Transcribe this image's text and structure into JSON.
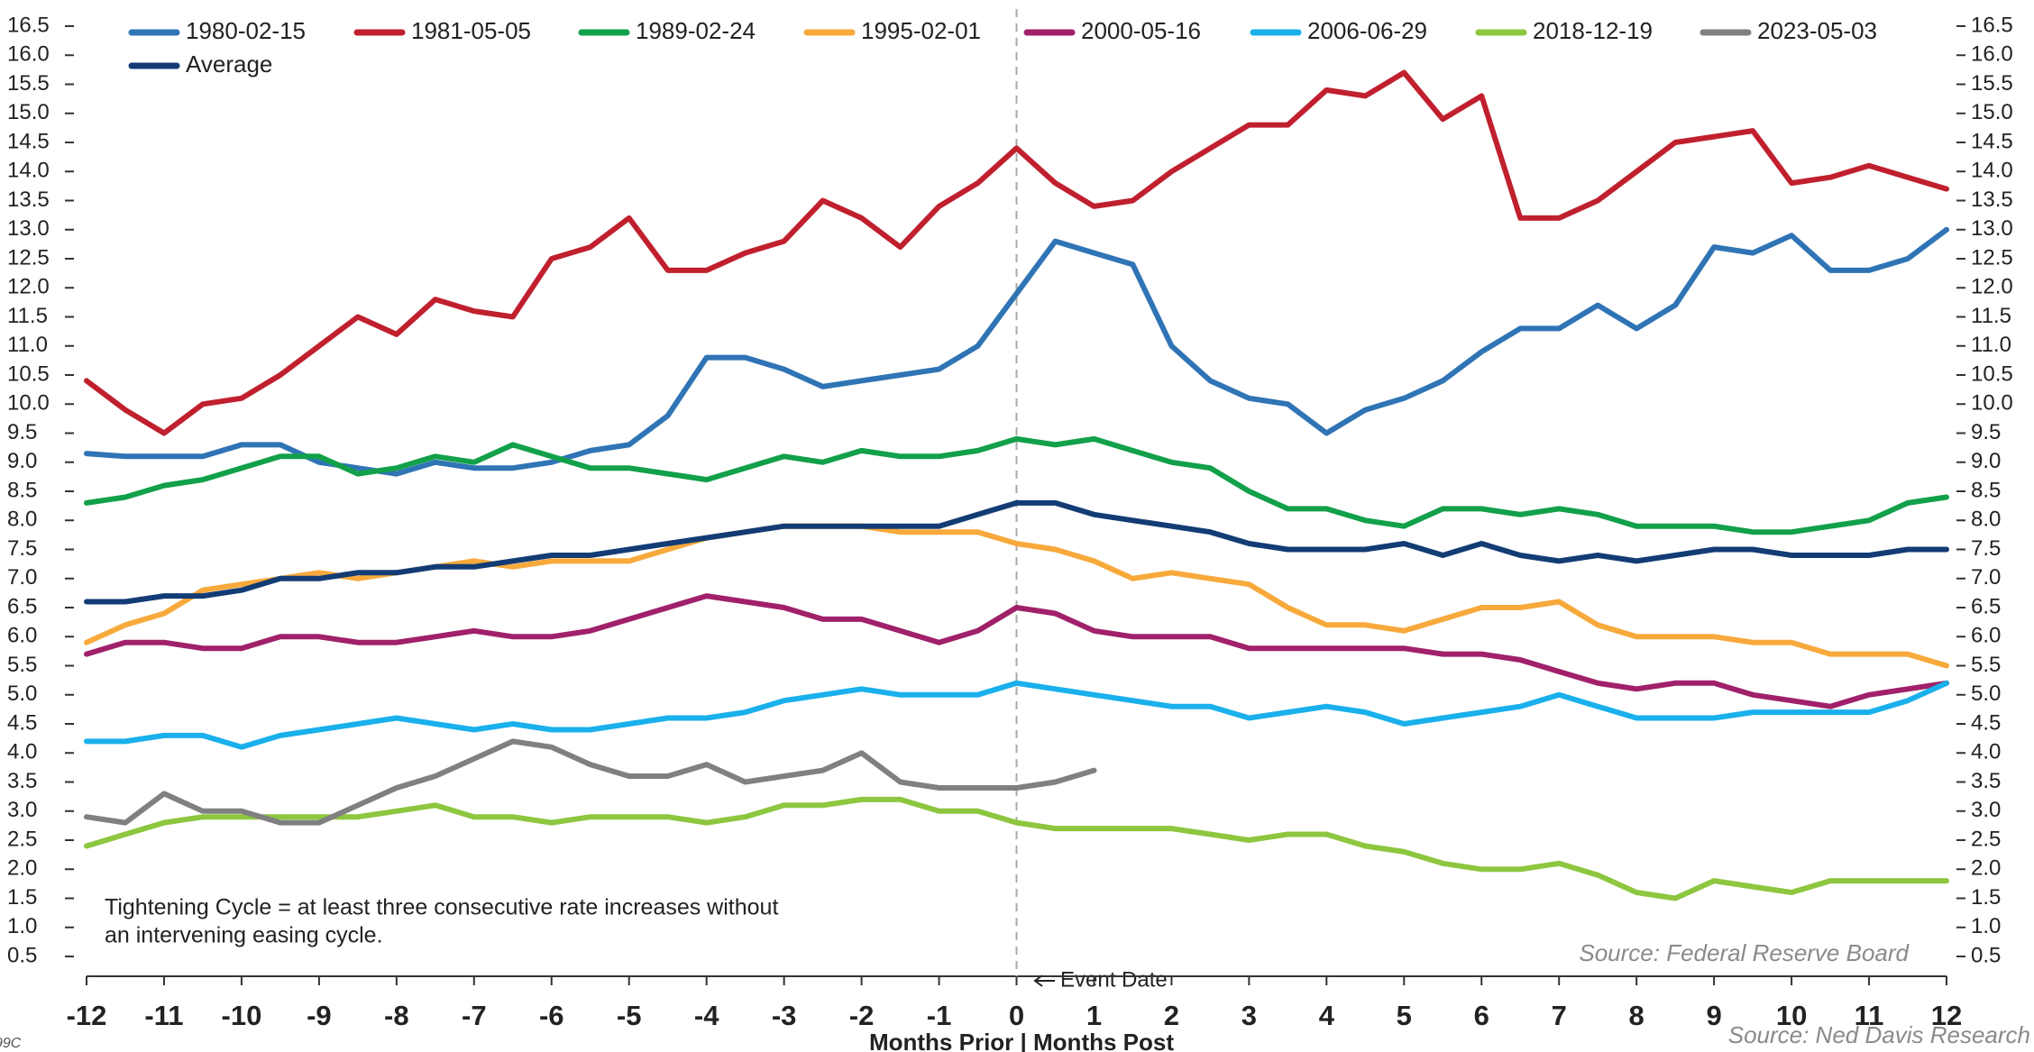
{
  "chart_data": {
    "type": "line",
    "x": [
      -12,
      -11.5,
      -11,
      -10.5,
      -10,
      -9.5,
      -9,
      -8.5,
      -8,
      -7.5,
      -7,
      -6.5,
      -6,
      -5.5,
      -5,
      -4.5,
      -4,
      -3.5,
      -3,
      -2.5,
      -2,
      -1.5,
      -1,
      -0.5,
      0,
      0.5,
      1,
      1.5,
      2,
      2.5,
      3,
      3.5,
      4,
      4.5,
      5,
      5.5,
      6,
      6.5,
      7,
      7.5,
      8,
      8.5,
      9,
      9.5,
      10,
      10.5,
      11,
      11.5,
      12
    ],
    "series": [
      {
        "name": "1980-02-15",
        "color": "#2f74b5",
        "values": [
          9.15,
          9.1,
          9.1,
          9.1,
          9.3,
          9.3,
          9.0,
          8.9,
          8.8,
          9.0,
          8.9,
          8.9,
          9.0,
          9.2,
          9.3,
          9.8,
          10.8,
          10.8,
          10.6,
          10.3,
          10.4,
          10.5,
          10.6,
          11.0,
          11.9,
          12.8,
          12.6,
          12.4,
          11.0,
          10.4,
          10.1,
          10.0,
          9.5,
          9.9,
          10.1,
          10.4,
          10.9,
          11.3,
          11.3,
          11.7,
          11.3,
          11.7,
          12.7,
          12.6,
          12.9,
          12.3,
          12.3,
          12.5,
          13.0
        ]
      },
      {
        "name": "1981-05-05",
        "color": "#c0202e",
        "values": [
          10.4,
          9.9,
          9.5,
          10.0,
          10.1,
          10.5,
          11.0,
          11.5,
          11.2,
          11.8,
          11.6,
          11.5,
          12.5,
          12.7,
          13.2,
          12.3,
          12.3,
          12.6,
          12.8,
          13.5,
          13.2,
          12.7,
          13.4,
          13.8,
          14.4,
          13.8,
          13.4,
          13.5,
          14.0,
          14.4,
          14.8,
          14.8,
          15.4,
          15.3,
          15.7,
          14.9,
          15.3,
          13.2,
          13.2,
          13.5,
          14.0,
          14.5,
          14.6,
          14.7,
          13.8,
          13.9,
          14.1,
          13.9,
          13.7
        ]
      },
      {
        "name": "1989-02-24",
        "color": "#12a04a",
        "values": [
          8.3,
          8.4,
          8.6,
          8.7,
          8.9,
          9.1,
          9.1,
          8.8,
          8.9,
          9.1,
          9.0,
          9.3,
          9.1,
          8.9,
          8.9,
          8.8,
          8.7,
          8.9,
          9.1,
          9.0,
          9.2,
          9.1,
          9.1,
          9.2,
          9.4,
          9.3,
          9.4,
          9.2,
          9.0,
          8.9,
          8.5,
          8.2,
          8.2,
          8.0,
          7.9,
          8.2,
          8.2,
          8.1,
          8.2,
          8.1,
          7.9,
          7.9,
          7.9,
          7.8,
          7.8,
          7.9,
          8.0,
          8.3,
          8.4
        ]
      },
      {
        "name": "1995-02-01",
        "color": "#f7a93b",
        "values": [
          5.9,
          6.2,
          6.4,
          6.8,
          6.9,
          7.0,
          7.1,
          7.0,
          7.1,
          7.2,
          7.3,
          7.2,
          7.3,
          7.3,
          7.3,
          7.5,
          7.7,
          7.8,
          7.9,
          7.9,
          7.9,
          7.8,
          7.8,
          7.8,
          7.6,
          7.5,
          7.3,
          7.0,
          7.1,
          7.0,
          6.9,
          6.5,
          6.2,
          6.2,
          6.1,
          6.3,
          6.5,
          6.5,
          6.6,
          6.2,
          6.0,
          6.0,
          6.0,
          5.9,
          5.9,
          5.7,
          5.7,
          5.7,
          5.5
        ]
      },
      {
        "name": "2000-05-16",
        "color": "#a0216a",
        "values": [
          5.7,
          5.9,
          5.9,
          5.8,
          5.8,
          6.0,
          6.0,
          5.9,
          5.9,
          6.0,
          6.1,
          6.0,
          6.0,
          6.1,
          6.3,
          6.5,
          6.7,
          6.6,
          6.5,
          6.3,
          6.3,
          6.1,
          5.9,
          6.1,
          6.5,
          6.4,
          6.1,
          6.0,
          6.0,
          6.0,
          5.8,
          5.8,
          5.8,
          5.8,
          5.8,
          5.7,
          5.7,
          5.6,
          5.4,
          5.2,
          5.1,
          5.2,
          5.2,
          5.0,
          4.9,
          4.8,
          5.0,
          5.1,
          5.2
        ]
      },
      {
        "name": "2006-06-29",
        "color": "#1ab0ec",
        "values": [
          4.2,
          4.2,
          4.3,
          4.3,
          4.1,
          4.3,
          4.4,
          4.5,
          4.6,
          4.5,
          4.4,
          4.5,
          4.4,
          4.4,
          4.5,
          4.6,
          4.6,
          4.7,
          4.9,
          5.0,
          5.1,
          5.0,
          5.0,
          5.0,
          5.2,
          5.1,
          5.0,
          4.9,
          4.8,
          4.8,
          4.6,
          4.7,
          4.8,
          4.7,
          4.5,
          4.6,
          4.7,
          4.8,
          5.0,
          4.8,
          4.6,
          4.6,
          4.6,
          4.7,
          4.7,
          4.7,
          4.7,
          4.9,
          5.2
        ]
      },
      {
        "name": "2018-12-19",
        "color": "#8dc63f",
        "values": [
          2.4,
          2.6,
          2.8,
          2.9,
          2.9,
          2.9,
          2.9,
          2.9,
          3.0,
          3.1,
          2.9,
          2.9,
          2.8,
          2.9,
          2.9,
          2.9,
          2.8,
          2.9,
          3.1,
          3.1,
          3.2,
          3.2,
          3.0,
          3.0,
          2.8,
          2.7,
          2.7,
          2.7,
          2.7,
          2.6,
          2.5,
          2.6,
          2.6,
          2.4,
          2.3,
          2.1,
          2.0,
          2.0,
          2.1,
          1.9,
          1.6,
          1.5,
          1.8,
          1.7,
          1.6,
          1.8,
          1.8,
          1.8,
          1.8
        ]
      },
      {
        "name": "2023-05-03",
        "color": "#808080",
        "values": [
          2.9,
          2.8,
          3.3,
          3.0,
          3.0,
          2.8,
          2.8,
          3.1,
          3.4,
          3.6,
          3.9,
          4.2,
          4.1,
          3.8,
          3.6,
          3.6,
          3.8,
          3.5,
          3.6,
          3.7,
          4.0,
          3.5,
          3.4,
          3.4,
          3.4,
          3.5,
          3.7,
          null,
          null,
          null,
          null,
          null,
          null,
          null,
          null,
          null,
          null,
          null,
          null,
          null,
          null,
          null,
          null,
          null,
          null,
          null,
          null,
          null,
          null
        ]
      },
      {
        "name": "Average",
        "color": "#133c75",
        "values": [
          6.6,
          6.6,
          6.7,
          6.7,
          6.8,
          7.0,
          7.0,
          7.1,
          7.1,
          7.2,
          7.2,
          7.3,
          7.4,
          7.4,
          7.5,
          7.6,
          7.7,
          7.8,
          7.9,
          7.9,
          7.9,
          7.9,
          7.9,
          8.1,
          8.3,
          8.3,
          8.1,
          8.0,
          7.9,
          7.8,
          7.6,
          7.5,
          7.5,
          7.5,
          7.6,
          7.4,
          7.6,
          7.4,
          7.3,
          7.4,
          7.3,
          7.4,
          7.5,
          7.5,
          7.4,
          7.4,
          7.4,
          7.5,
          7.5
        ]
      }
    ],
    "xlim": [
      -12,
      12
    ],
    "xticks": [
      -12,
      -11,
      -10,
      -9,
      -8,
      -7,
      -6,
      -5,
      -4,
      -3,
      -2,
      -1,
      0,
      1,
      2,
      3,
      4,
      5,
      6,
      7,
      8,
      9,
      10,
      11,
      12
    ],
    "ylim": [
      0.5,
      16.5
    ],
    "yticks": [
      0.5,
      {
        "value": 1,
        "label": "1.0"
      },
      1.5,
      {
        "value": 2,
        "label": "2.0"
      },
      2.5,
      {
        "value": 3,
        "label": "3.0"
      },
      3.5,
      {
        "value": 4,
        "label": "4.0"
      },
      4.5,
      {
        "value": 5,
        "label": "5.0"
      },
      5.5,
      {
        "value": 6,
        "label": "6.0"
      },
      6.5,
      {
        "value": 7,
        "label": "7.0"
      },
      7.5,
      {
        "value": 8,
        "label": "8.0"
      },
      8.5,
      {
        "value": 9,
        "label": "9.0"
      },
      9.5,
      {
        "value": 10,
        "label": "10.0"
      },
      10.5,
      {
        "value": 11,
        "label": "11.0"
      },
      11.5,
      {
        "value": 12,
        "label": "12.0"
      },
      12.5,
      {
        "value": 13,
        "label": "13.0"
      },
      13.5,
      {
        "value": 14,
        "label": "14.0"
      },
      14.5,
      {
        "value": 15,
        "label": "15.0"
      },
      15.5,
      {
        "value": 16,
        "label": "16.0"
      },
      16.5
    ],
    "xlabel": "Months Prior | Months Post",
    "event_label": "Event Date",
    "note": [
      "Tightening Cycle = at least three consecutive rate increases without",
      "an intervening easing cycle."
    ],
    "source_inner": "Source:  Federal Reserve Board",
    "source_outer": "Source: Ned Davis Research",
    "corner_code": "99C",
    "legend": "top-left"
  }
}
